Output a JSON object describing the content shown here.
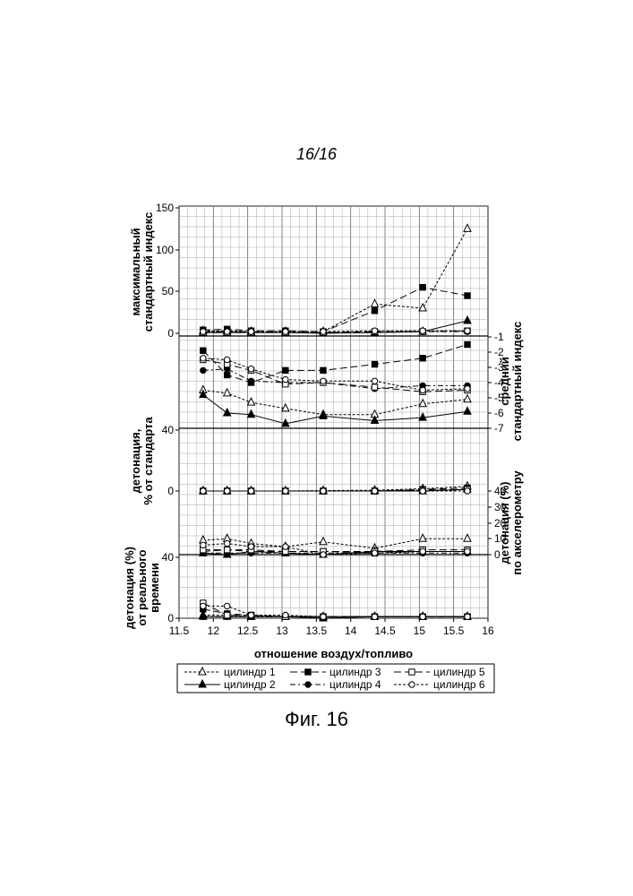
{
  "page_number": "16/16",
  "figure_caption": "Фиг. 16",
  "chart_data": {
    "type": "line",
    "xlabel": "отношение воздух/топливо",
    "x_ticks": [
      "11.5",
      "12",
      "12.5",
      "13",
      "13.5",
      "14",
      "14.5",
      "15",
      "15.5",
      "16"
    ],
    "xlim": [
      11.5,
      16
    ],
    "x": [
      11.85,
      12.2,
      12.55,
      13.05,
      13.6,
      14.35,
      15.05,
      15.7
    ],
    "legend": {
      "placement": "bottom",
      "entries": [
        "цилиндр 1",
        "цилиндр 2",
        "цилиндр 3",
        "цилиндр 4",
        "цилиндр 5",
        "цилиндр 6"
      ]
    },
    "series_styles": [
      {
        "name": "цилиндр 1",
        "line": "short-dash",
        "marker": "triangle-open"
      },
      {
        "name": "цилиндр 2",
        "line": "solid",
        "marker": "triangle-filled"
      },
      {
        "name": "цилиндр 3",
        "line": "long-dash",
        "marker": "square-filled"
      },
      {
        "name": "цилиндр 4",
        "line": "dash-dot",
        "marker": "circle-filled"
      },
      {
        "name": "цилиндр 5",
        "line": "long-dash",
        "marker": "square-open"
      },
      {
        "name": "цилиндр 6",
        "line": "short-dash",
        "marker": "circle-open"
      }
    ],
    "panels": [
      {
        "id": "max_index",
        "ylabel_lines": [
          "максимальный",
          "стандартный индекс"
        ],
        "y_side": "left",
        "ylim": [
          0,
          150
        ],
        "y_ticks": [
          "0",
          "50",
          "100",
          "150"
        ],
        "series": [
          {
            "values": [
              3,
              3,
              2,
              2,
              2,
              35,
              30,
              125
            ]
          },
          {
            "values": [
              1,
              1,
              1,
              1,
              0,
              1,
              2,
              15
            ]
          },
          {
            "values": [
              4,
              5,
              3,
              3,
              2,
              27,
              55,
              45
            ]
          },
          {
            "values": [
              2,
              2,
              2,
              1,
              1,
              1,
              2,
              2
            ]
          },
          {
            "values": [
              1,
              1,
              1,
              1,
              1,
              2,
              2,
              3
            ]
          },
          {
            "values": [
              2,
              2,
              2,
              2,
              2,
              3,
              3,
              3
            ]
          }
        ]
      },
      {
        "id": "mean_index",
        "ylabel_lines": [
          "средний",
          "стандартный индекс"
        ],
        "y_side": "right",
        "ylim": [
          -7.3,
          -0.7
        ],
        "y_ticks": [
          "-1",
          "-2",
          "-3",
          "-4",
          "-5",
          "-6",
          "-7"
        ],
        "series": [
          {
            "values": [
              -4.5,
              -4.7,
              -5.3,
              -5.7,
              -6.1,
              -6.1,
              -5.4,
              -5.1
            ]
          },
          {
            "values": [
              -4.8,
              -6.0,
              -6.1,
              -6.7,
              -6.2,
              -6.5,
              -6.3,
              -5.9
            ]
          },
          {
            "values": [
              -1.9,
              -3.5,
              -4.0,
              -3.2,
              -3.2,
              -2.8,
              -2.4,
              -1.5
            ]
          },
          {
            "values": [
              -3.2,
              -3.1,
              -3.9,
              -4.0,
              -4.0,
              -4.4,
              -4.2,
              -4.2
            ]
          },
          {
            "values": [
              -2.5,
              -2.8,
              -3.2,
              -4.1,
              -4.0,
              -4.3,
              -4.6,
              -4.5
            ]
          },
          {
            "values": [
              -2.4,
              -2.5,
              -3.1,
              -3.8,
              -3.9,
              -3.9,
              -4.5,
              -4.4
            ]
          }
        ]
      },
      {
        "id": "knock_standard",
        "ylabel_lines": [
          "детонация,",
          "% от стандарта"
        ],
        "y_side": "left",
        "ylim": [
          0,
          40
        ],
        "y_ticks": [
          "0",
          "40"
        ],
        "series": [
          {
            "values": [
              0,
              0,
              0,
              0,
              0.3,
              0.5,
              1.5,
              3
            ]
          },
          {
            "values": [
              0,
              0,
              0,
              0,
              0,
              0,
              0,
              1
            ]
          },
          {
            "values": [
              0,
              0,
              0,
              0,
              0,
              0,
              1,
              2
            ]
          },
          {
            "values": [
              0,
              0,
              0,
              0,
              0,
              0,
              0.5,
              1
            ]
          },
          {
            "values": [
              0,
              0,
              0,
              0,
              0,
              0,
              0.5,
              1
            ]
          },
          {
            "values": [
              0,
              0,
              0,
              0,
              0,
              0,
              0,
              0
            ]
          }
        ]
      },
      {
        "id": "knock_accel",
        "ylabel_lines": [
          "детонация (%)",
          "по акселерометру"
        ],
        "y_side": "right",
        "ylim": [
          0,
          40
        ],
        "y_ticks": [
          "0",
          "10",
          "20",
          "30",
          "40"
        ],
        "series": [
          {
            "values": [
              9,
              10,
              7,
              5,
              8,
              4,
              10,
              10
            ]
          },
          {
            "values": [
              1,
              0,
              2,
              1,
              0,
              2,
              2,
              2
            ]
          },
          {
            "values": [
              2,
              3,
              2,
              2,
              2,
              1,
              2,
              2
            ]
          },
          {
            "values": [
              1,
              1,
              1,
              1,
              1,
              1,
              1,
              1
            ]
          },
          {
            "values": [
              3,
              3,
              3,
              2,
              2,
              2,
              3,
              3
            ]
          },
          {
            "values": [
              6,
              7,
              5,
              5,
              0,
              1,
              2,
              2
            ]
          }
        ]
      },
      {
        "id": "knock_realtime",
        "ylabel_lines": [
          "детонация (%)",
          "от реального",
          "времени"
        ],
        "y_side": "left",
        "ylim": [
          0,
          40
        ],
        "y_ticks": [
          "0",
          "40"
        ],
        "series": [
          {
            "values": [
              2,
              2,
              1,
              1,
              1,
              1,
              1,
              1
            ]
          },
          {
            "values": [
              1,
              1,
              1,
              1,
              0,
              1,
              1,
              1
            ]
          },
          {
            "values": [
              6,
              3,
              2,
              1,
              1,
              1,
              1,
              1
            ]
          },
          {
            "values": [
              1,
              1,
              1,
              1,
              1,
              1,
              1,
              1
            ]
          },
          {
            "values": [
              10,
              2,
              2,
              1,
              1,
              1,
              1,
              1
            ]
          },
          {
            "values": [
              8,
              8,
              2,
              2,
              1,
              1,
              1,
              1
            ]
          }
        ]
      }
    ]
  }
}
